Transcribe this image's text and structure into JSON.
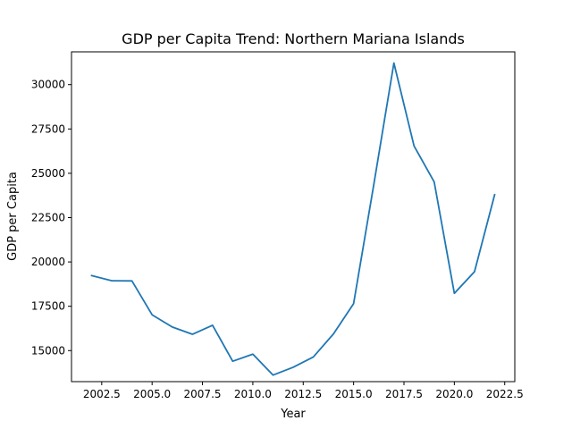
{
  "chart_data": {
    "type": "line",
    "title": "GDP per Capita Trend: Northern Mariana Islands",
    "xlabel": "Year",
    "ylabel": "GDP per Capita",
    "xlim": [
      2001.0,
      2023.0
    ],
    "ylim": [
      13250,
      31850
    ],
    "x_ticks": [
      2002.5,
      2005.0,
      2007.5,
      2010.0,
      2012.5,
      2015.0,
      2017.5,
      2020.0,
      2022.5
    ],
    "x_tick_labels": [
      "2002.5",
      "2005.0",
      "2007.5",
      "2010.0",
      "2012.5",
      "2015.0",
      "2017.5",
      "2020.0",
      "2022.5"
    ],
    "y_ticks": [
      15000,
      17500,
      20000,
      22500,
      25000,
      27500,
      30000
    ],
    "y_tick_labels": [
      "15000",
      "17500",
      "20000",
      "22500",
      "25000",
      "27500",
      "30000"
    ],
    "grid": false,
    "line_color": "#1f77b4",
    "series": [
      {
        "x": [
          2002,
          2003,
          2004,
          2005,
          2006,
          2007,
          2008,
          2009,
          2010,
          2011,
          2012,
          2013,
          2014,
          2015,
          2016,
          2017,
          2018,
          2019,
          2020,
          2021,
          2022
        ],
        "values": [
          19230,
          18940,
          18930,
          17020,
          16330,
          15920,
          16430,
          14400,
          14800,
          13620,
          14060,
          14640,
          15940,
          17650,
          24350,
          31220,
          26540,
          24510,
          18230,
          19450,
          23790
        ]
      }
    ]
  }
}
